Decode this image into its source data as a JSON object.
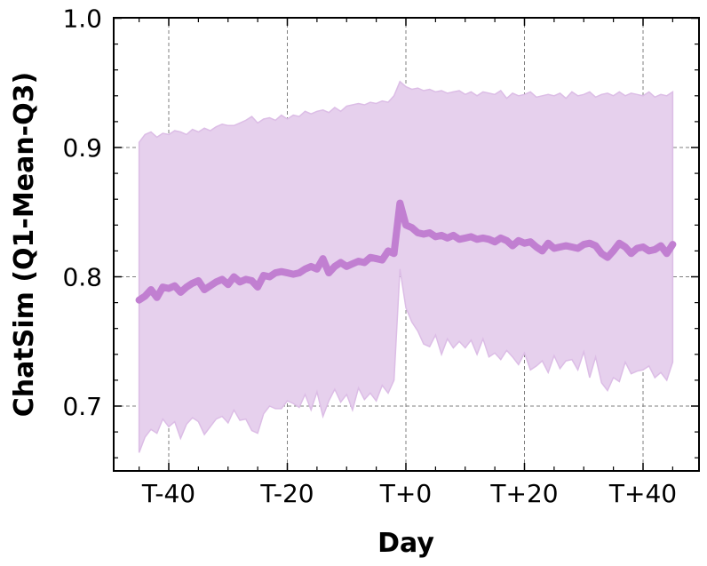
{
  "chart_data": {
    "type": "line",
    "title": "",
    "xlabel": "Day",
    "ylabel": "ChatSim (Q1-Mean-Q3)",
    "xlim": [
      -45,
      50
    ],
    "ylim": [
      0.65,
      1.0
    ],
    "grid": true,
    "xticks": [
      {
        "value": -40,
        "label": "T-40"
      },
      {
        "value": -20,
        "label": "T-20"
      },
      {
        "value": 0,
        "label": "T+0"
      },
      {
        "value": 20,
        "label": "T+20"
      },
      {
        "value": 40,
        "label": "T+40"
      }
    ],
    "yticks": [
      {
        "value": 0.7,
        "label": "0.7"
      },
      {
        "value": 0.8,
        "label": "0.8"
      },
      {
        "value": 0.9,
        "label": "0.9"
      },
      {
        "value": 1.0,
        "label": "1.0"
      }
    ],
    "colors": {
      "line": "#c17fd1",
      "band": "#e6d0ed",
      "band_edge": "#dcbde6"
    },
    "series": [
      {
        "x": [
          -45,
          -44,
          -43,
          -42,
          -41,
          -40,
          -39,
          -38,
          -37,
          -36,
          -35,
          -34,
          -33,
          -32,
          -31,
          -30,
          -29,
          -28,
          -27,
          -26,
          -25,
          -24,
          -23,
          -22,
          -21,
          -20,
          -19,
          -18,
          -17,
          -16,
          -15,
          -14,
          -13,
          -12,
          -11,
          -10,
          -9,
          -8,
          -7,
          -6,
          -5,
          -4,
          -3,
          -2,
          -1,
          0,
          1,
          2,
          3,
          4,
          5,
          6,
          7,
          8,
          9,
          10,
          11,
          12,
          13,
          14,
          15,
          16,
          17,
          18,
          19,
          20,
          21,
          22,
          23,
          24,
          25,
          26,
          27,
          28,
          29,
          30,
          31,
          32,
          33,
          34,
          35,
          36,
          37,
          38,
          39,
          40,
          41,
          42,
          43,
          44,
          45
        ],
        "mean": [
          0.782,
          0.785,
          0.79,
          0.784,
          0.792,
          0.791,
          0.793,
          0.788,
          0.792,
          0.795,
          0.797,
          0.79,
          0.793,
          0.796,
          0.798,
          0.794,
          0.8,
          0.796,
          0.798,
          0.797,
          0.792,
          0.801,
          0.8,
          0.803,
          0.804,
          0.803,
          0.802,
          0.803,
          0.806,
          0.808,
          0.806,
          0.814,
          0.803,
          0.808,
          0.811,
          0.808,
          0.81,
          0.812,
          0.811,
          0.815,
          0.814,
          0.813,
          0.82,
          0.818,
          0.857,
          0.84,
          0.838,
          0.834,
          0.833,
          0.834,
          0.831,
          0.832,
          0.83,
          0.832,
          0.829,
          0.83,
          0.831,
          0.829,
          0.83,
          0.829,
          0.827,
          0.83,
          0.828,
          0.824,
          0.828,
          0.826,
          0.827,
          0.823,
          0.82,
          0.826,
          0.822,
          0.823,
          0.824,
          0.823,
          0.822,
          0.825,
          0.826,
          0.824,
          0.818,
          0.815,
          0.82,
          0.826,
          0.823,
          0.818,
          0.822,
          0.823,
          0.82,
          0.821,
          0.824,
          0.818,
          0.825
        ],
        "q1": [
          0.664,
          0.676,
          0.682,
          0.679,
          0.69,
          0.684,
          0.688,
          0.675,
          0.686,
          0.691,
          0.688,
          0.678,
          0.684,
          0.69,
          0.692,
          0.687,
          0.697,
          0.689,
          0.69,
          0.681,
          0.679,
          0.694,
          0.7,
          0.698,
          0.698,
          0.704,
          0.702,
          0.699,
          0.709,
          0.697,
          0.711,
          0.692,
          0.704,
          0.713,
          0.703,
          0.709,
          0.697,
          0.714,
          0.705,
          0.71,
          0.704,
          0.716,
          0.71,
          0.72,
          0.806,
          0.776,
          0.765,
          0.758,
          0.748,
          0.746,
          0.755,
          0.74,
          0.752,
          0.745,
          0.75,
          0.745,
          0.751,
          0.74,
          0.752,
          0.738,
          0.741,
          0.736,
          0.743,
          0.738,
          0.732,
          0.741,
          0.728,
          0.731,
          0.735,
          0.726,
          0.739,
          0.729,
          0.735,
          0.736,
          0.728,
          0.742,
          0.722,
          0.738,
          0.718,
          0.712,
          0.722,
          0.719,
          0.734,
          0.725,
          0.727,
          0.728,
          0.731,
          0.722,
          0.726,
          0.72,
          0.734
        ],
        "q3": [
          0.904,
          0.91,
          0.912,
          0.908,
          0.911,
          0.91,
          0.913,
          0.912,
          0.91,
          0.914,
          0.912,
          0.915,
          0.913,
          0.916,
          0.918,
          0.917,
          0.917,
          0.919,
          0.921,
          0.924,
          0.919,
          0.922,
          0.923,
          0.921,
          0.925,
          0.922,
          0.925,
          0.924,
          0.928,
          0.926,
          0.928,
          0.929,
          0.927,
          0.931,
          0.928,
          0.932,
          0.933,
          0.934,
          0.933,
          0.935,
          0.934,
          0.936,
          0.935,
          0.94,
          0.951,
          0.947,
          0.945,
          0.946,
          0.944,
          0.945,
          0.943,
          0.944,
          0.942,
          0.943,
          0.944,
          0.941,
          0.943,
          0.94,
          0.943,
          0.942,
          0.941,
          0.944,
          0.938,
          0.942,
          0.94,
          0.941,
          0.943,
          0.939,
          0.94,
          0.941,
          0.94,
          0.942,
          0.938,
          0.943,
          0.94,
          0.941,
          0.943,
          0.939,
          0.941,
          0.942,
          0.94,
          0.943,
          0.94,
          0.942,
          0.941,
          0.94,
          0.943,
          0.939,
          0.941,
          0.94,
          0.943
        ]
      }
    ]
  }
}
